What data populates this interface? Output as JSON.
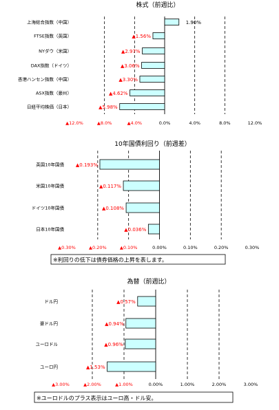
{
  "colors": {
    "negative": "#ff0000",
    "positive": "#000000",
    "bar_fill": "#ccffff",
    "bar_stroke": "#000000"
  },
  "chart_data": [
    {
      "type": "bar",
      "orientation": "horizontal",
      "title": "株式（前週比）",
      "categories": [
        "上海総合指数（中国）",
        "FTSE指数（英国）",
        "NYダウ（米国）",
        "DAX指数（ドイツ）",
        "香港ハンセン指数（中国）",
        "ASX指数（豪州）",
        "日経平均株価（日本）"
      ],
      "values": [
        1.9,
        -1.56,
        -2.97,
        -3.06,
        -3.3,
        -4.62,
        -5.98
      ],
      "value_labels": [
        "1.90%",
        "▲1.56%",
        "▲2.97%",
        "▲3.06%",
        "▲3.30%",
        "▲4.62%",
        "▲5.98%"
      ],
      "xlim": [
        -12,
        12
      ],
      "tick_labels": [
        "▲12.0%",
        "▲8.0%",
        "▲4.0%",
        "0.0%",
        "4.0%",
        "8.0%",
        "12.0%"
      ],
      "grid": "vertical dashed",
      "note": ""
    },
    {
      "type": "bar",
      "orientation": "horizontal",
      "title": "10年国債利回り（前週差）",
      "categories": [
        "英国10年国債",
        "米国10年国債",
        "ドイツ10年国債",
        "日本10年国債"
      ],
      "values": [
        -0.193,
        -0.117,
        -0.108,
        -0.036
      ],
      "value_labels": [
        "▲0.193%",
        "▲0.117%",
        "▲0.108%",
        "▲0.036%"
      ],
      "xlim": [
        -0.3,
        0.3
      ],
      "tick_labels": [
        "▲0.30%",
        "▲0.20%",
        "▲0.10%",
        "0.00%",
        "0.10%",
        "0.20%",
        "0.30%"
      ],
      "grid": "vertical dashed",
      "note": "※利回りの低下は債券価格の上昇を表します。"
    },
    {
      "type": "bar",
      "orientation": "horizontal",
      "title": "為替（前週比）",
      "categories": [
        "ドル円",
        "豪ドル円",
        "ユーロドル",
        "ユーロ円"
      ],
      "values": [
        -0.57,
        -0.94,
        -0.96,
        -1.53
      ],
      "value_labels": [
        "▲0.57%",
        "▲0.94%",
        "▲0.96%",
        "▲1.53%"
      ],
      "xlim": [
        -3,
        3
      ],
      "tick_labels": [
        "▲3.00%",
        "▲2.00%",
        "▲1.00%",
        "0.00%",
        "1.00%",
        "2.00%",
        "3.00%"
      ],
      "grid": "vertical dashed",
      "note": "※ユーロドルのプラス表示はユーロ高・ドル安。"
    }
  ]
}
